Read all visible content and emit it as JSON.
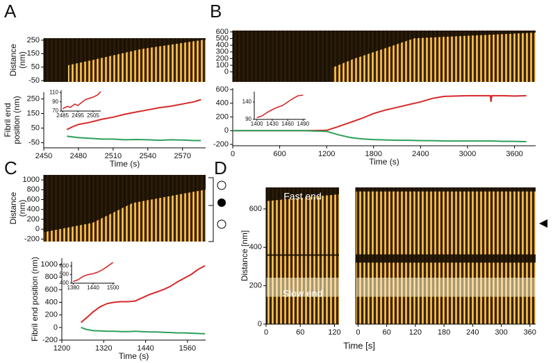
{
  "chart_data": [
    {
      "type": "kymograph",
      "panel": "A",
      "ylabel": [
        "Distance",
        "(nm)"
      ],
      "ylim": [
        -60,
        265
      ],
      "yticks": [
        -50,
        50,
        150,
        250
      ]
    },
    {
      "type": "line",
      "xlabel": "Time (s)",
      "ylabel": [
        "Fibril end",
        "position (nm)"
      ],
      "xlim": [
        2450,
        2590
      ],
      "xticks": [
        2450,
        2480,
        2510,
        2540,
        2570
      ],
      "ylim": [
        -85,
        295
      ],
      "yticks": [
        -50,
        50,
        150,
        250
      ],
      "x": [
        2470,
        2475,
        2480,
        2490,
        2500,
        2510,
        2520,
        2530,
        2540,
        2550,
        2560,
        2570,
        2580,
        2586
      ],
      "series": [
        {
          "color": "#d62728",
          "values": [
            40,
            60,
            75,
            90,
            110,
            125,
            145,
            160,
            175,
            190,
            200,
            215,
            230,
            245
          ]
        },
        {
          "color": "#2ca05a",
          "values": [
            -5,
            -10,
            -15,
            -20,
            -25,
            -25,
            -30,
            -28,
            -30,
            -33,
            -30,
            -32,
            -35,
            -35
          ]
        }
      ],
      "inset": {
        "type": "line",
        "xlim": [
          2484,
          2510
        ],
        "xticks": [
          2485,
          2495,
          2505
        ],
        "ylim": [
          70,
          115
        ],
        "yticks": [
          70,
          90,
          110
        ],
        "x": [
          2485,
          2488,
          2490,
          2493,
          2495,
          2498,
          2500,
          2503,
          2505,
          2508,
          2510
        ],
        "series": [
          {
            "color": "#d62728",
            "values": [
              75,
              80,
              78,
              85,
              82,
              90,
              95,
              98,
              100,
              105,
              112
            ]
          }
        ]
      }
    },
    {
      "type": "kymograph",
      "panel": "B",
      "ylim": [
        -150,
        620
      ],
      "yticks": [
        0,
        100,
        200,
        300,
        400,
        500,
        600
      ]
    },
    {
      "type": "line",
      "xlabel": "Time (s)",
      "xlim": [
        0,
        3870
      ],
      "xticks": [
        0,
        600,
        1200,
        1800,
        2400,
        3000,
        3600
      ],
      "ylim": [
        -220,
        620
      ],
      "yticks": [
        -200,
        0,
        200,
        400,
        600
      ],
      "x": [
        0,
        300,
        600,
        900,
        1200,
        1350,
        1500,
        1650,
        1800,
        1950,
        2100,
        2250,
        2400,
        2550,
        2700,
        2850,
        3000,
        3150,
        3290,
        3300,
        3310,
        3450,
        3600,
        3750
      ],
      "series": [
        {
          "color": "#d62728",
          "values": [
            0,
            0,
            0,
            0,
            5,
            60,
            120,
            180,
            250,
            300,
            340,
            380,
            420,
            470,
            500,
            505,
            510,
            510,
            510,
            420,
            510,
            510,
            505,
            510
          ]
        },
        {
          "color": "#2ca05a",
          "values": [
            0,
            0,
            0,
            0,
            -10,
            -60,
            -100,
            -120,
            -130,
            -135,
            -140,
            -140,
            -145,
            -145,
            -150,
            -150,
            -150,
            -150,
            -150,
            -150,
            -150,
            -155,
            -155,
            -160
          ]
        }
      ],
      "inset": {
        "type": "line",
        "xlim": [
          1395,
          1495
        ],
        "xticks": [
          1400,
          1430,
          1460,
          1490
        ],
        "ylim": [
          90,
          170
        ],
        "yticks": [
          90,
          140
        ],
        "x": [
          1400,
          1410,
          1420,
          1430,
          1440,
          1450,
          1460,
          1470,
          1480,
          1490
        ],
        "series": [
          {
            "color": "#d62728",
            "values": [
              95,
              100,
              110,
              118,
              125,
              130,
              140,
              150,
              158,
              160
            ]
          }
        ]
      }
    },
    {
      "type": "kymograph",
      "panel": "C",
      "ylabel": [
        "Distance",
        "(nm)"
      ],
      "ylim": [
        -250,
        1100
      ],
      "yticks": [
        -200,
        0,
        200,
        400,
        600,
        800,
        1000
      ]
    },
    {
      "type": "line",
      "xlabel": "Time (s)",
      "ylabel": "Fibril end position (nm)",
      "xlim": [
        1200,
        1612
      ],
      "xticks": [
        1200,
        1320,
        1440,
        1560
      ],
      "ylim": [
        -200,
        1100
      ],
      "yticks": [
        -200,
        0,
        200,
        400,
        600,
        800,
        1000
      ],
      "x": [
        1255,
        1270,
        1290,
        1310,
        1330,
        1350,
        1370,
        1390,
        1410,
        1430,
        1450,
        1470,
        1490,
        1510,
        1530,
        1550,
        1570,
        1590,
        1610
      ],
      "series": [
        {
          "color": "#d62728",
          "values": [
            80,
            150,
            250,
            330,
            380,
            400,
            410,
            410,
            420,
            470,
            520,
            560,
            600,
            650,
            720,
            780,
            840,
            920,
            980
          ]
        },
        {
          "color": "#2ca05a",
          "values": [
            0,
            -30,
            -50,
            -55,
            -60,
            -60,
            -65,
            -65,
            -60,
            -65,
            -70,
            -70,
            -75,
            -80,
            -85,
            -85,
            -90,
            -95,
            -100
          ]
        }
      ],
      "inset": {
        "type": "line",
        "xlim": [
          1375,
          1505
        ],
        "xticks": [
          1380,
          1440,
          1500
        ],
        "ylim": [
          400,
          650
        ],
        "yticks": [
          400,
          500,
          600
        ],
        "x": [
          1380,
          1395,
          1410,
          1425,
          1440,
          1455,
          1470,
          1485,
          1500
        ],
        "series": [
          {
            "color": "#d62728",
            "values": [
              420,
              440,
              480,
              500,
              510,
              530,
              560,
              600,
              640
            ]
          }
        ]
      }
    },
    {
      "type": "kymograph",
      "panel": "D",
      "ylabel": "Distance [nm]",
      "ylim": [
        0,
        712
      ],
      "yticks": [
        0,
        200,
        400,
        600
      ],
      "xlim": [
        0,
        128
      ],
      "xticks": [
        0,
        60,
        120
      ],
      "annotations": [
        "Fast end",
        "Slow end"
      ]
    },
    {
      "type": "kymograph",
      "xlabel": "Time [s]",
      "xlim": [
        -5,
        372
      ],
      "xticks": [
        0,
        60,
        120,
        180,
        240,
        300,
        360
      ]
    }
  ]
}
